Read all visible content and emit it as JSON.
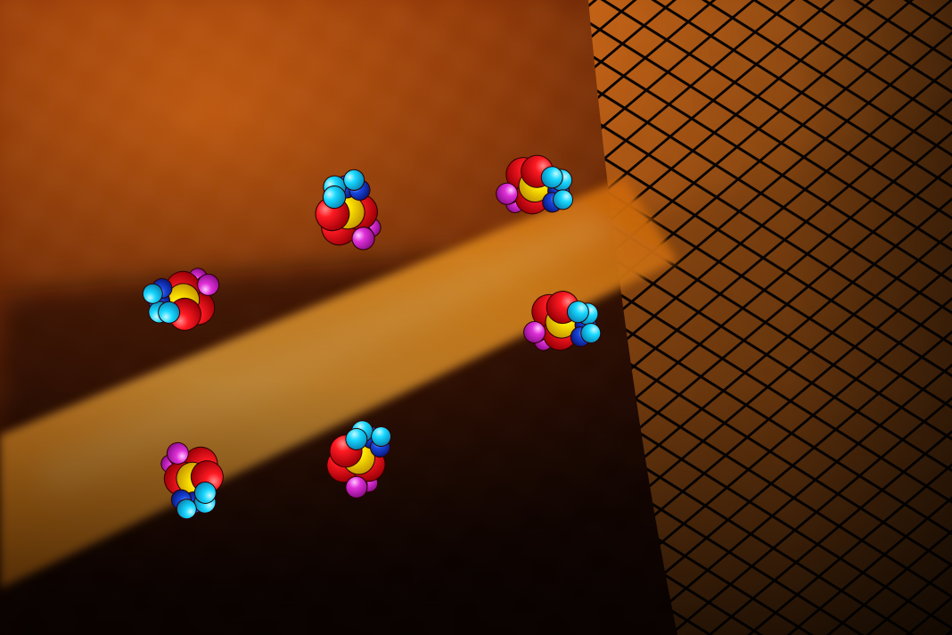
{
  "scene": {
    "description_colors": {
      "background_dark": "#2a0800",
      "background_warm": "#b84a08",
      "light_beam": "#ff9a2a",
      "beam_highlight": "#ffc060",
      "mesh": "#0a0300"
    },
    "molecule_colors": {
      "red": "#e8101a",
      "yellow": "#ffe600",
      "cyan": "#18d8ff",
      "blue": "#1848e0",
      "magenta": "#e030d8",
      "outline": "#2a0000"
    },
    "molecules": [
      {
        "name": "molecule-top-center",
        "orientation": "up"
      },
      {
        "name": "molecule-top-right",
        "orientation": "right"
      },
      {
        "name": "molecule-left",
        "orientation": "left"
      },
      {
        "name": "molecule-right",
        "orientation": "right"
      },
      {
        "name": "molecule-bottom-left",
        "orientation": "down"
      },
      {
        "name": "molecule-bottom-center",
        "orientation": "up"
      }
    ]
  }
}
